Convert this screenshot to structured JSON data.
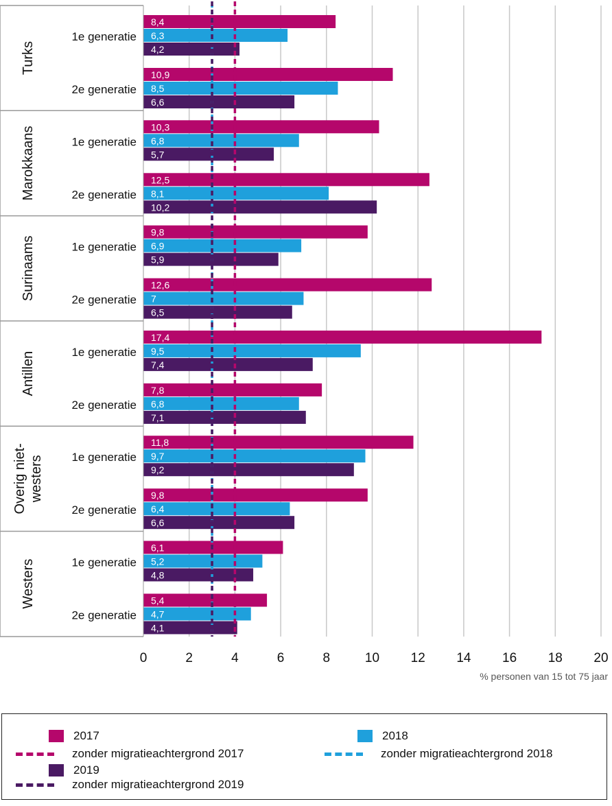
{
  "chart_data": {
    "type": "bar",
    "orientation": "horizontal",
    "xlabel": "% personen van 15 tot 75 jaar",
    "xlim": [
      0,
      20
    ],
    "xticks": [
      "0",
      "2",
      "4",
      "6",
      "8",
      "10",
      "12",
      "14",
      "16",
      "18",
      "20"
    ],
    "grid": true,
    "legend_position": "bottom",
    "groups": [
      {
        "name": "Turks",
        "subgroups": [
          {
            "label": "1e generatie",
            "values": [
              8.4,
              6.3,
              4.2
            ],
            "labels": [
              "8,4",
              "6,3",
              "4,2"
            ]
          },
          {
            "label": "2e generatie",
            "values": [
              10.9,
              8.5,
              6.6
            ],
            "labels": [
              "10,9",
              "8,5",
              "6,6"
            ]
          }
        ]
      },
      {
        "name": "Marokkaans",
        "subgroups": [
          {
            "label": "1e generatie",
            "values": [
              10.3,
              6.8,
              5.7
            ],
            "labels": [
              "10,3",
              "6,8",
              "5,7"
            ]
          },
          {
            "label": "2e generatie",
            "values": [
              12.5,
              8.1,
              10.2
            ],
            "labels": [
              "12,5",
              "8,1",
              "10,2"
            ]
          }
        ]
      },
      {
        "name": "Surinaams",
        "subgroups": [
          {
            "label": "1e generatie",
            "values": [
              9.8,
              6.9,
              5.9
            ],
            "labels": [
              "9,8",
              "6,9",
              "5,9"
            ]
          },
          {
            "label": "2e generatie",
            "values": [
              12.6,
              7,
              6.5
            ],
            "labels": [
              "12,6",
              "7",
              "6,5"
            ]
          }
        ]
      },
      {
        "name": "Antillen",
        "subgroups": [
          {
            "label": "1e generatie",
            "values": [
              17.4,
              9.5,
              7.4
            ],
            "labels": [
              "17,4",
              "9,5",
              "7,4"
            ]
          },
          {
            "label": "2e generatie",
            "values": [
              7.8,
              6.8,
              7.1
            ],
            "labels": [
              "7,8",
              "6,8",
              "7,1"
            ]
          }
        ]
      },
      {
        "name": "Overig niet-westers",
        "name_lines": [
          "Overig niet-",
          "westers"
        ],
        "subgroups": [
          {
            "label": "1e generatie",
            "values": [
              11.8,
              9.7,
              9.2
            ],
            "labels": [
              "11,8",
              "9,7",
              "9,2"
            ]
          },
          {
            "label": "2e generatie",
            "values": [
              9.8,
              6.4,
              6.6
            ],
            "labels": [
              "9,8",
              "6,4",
              "6,6"
            ]
          }
        ]
      },
      {
        "name": "Westers",
        "subgroups": [
          {
            "label": "1e generatie",
            "values": [
              6.1,
              5.2,
              4.8
            ],
            "labels": [
              "6,1",
              "5,2",
              "4,8"
            ]
          },
          {
            "label": "2e generatie",
            "values": [
              5.4,
              4.7,
              4.1
            ],
            "labels": [
              "5,4",
              "4,7",
              "4,1"
            ]
          }
        ]
      }
    ],
    "series": [
      {
        "name": "2017",
        "color": "#b5076b"
      },
      {
        "name": "2018",
        "color": "#1fa0dc"
      },
      {
        "name": "2019",
        "color": "#4a1a63"
      }
    ],
    "reference_lines": [
      {
        "name": "zonder migratieachtergrond 2017",
        "value": 4.0,
        "color": "#b5076b"
      },
      {
        "name": "zonder migratieachtergrond 2018",
        "value": 3.0,
        "color": "#1fa0dc"
      },
      {
        "name": "zonder migratieachtergrond 2019",
        "value": 3.0,
        "color": "#4a1a63"
      }
    ]
  },
  "legend": {
    "items": [
      {
        "label": "2017",
        "kind": "bar",
        "color": "#b5076b"
      },
      {
        "label": "2018",
        "kind": "bar",
        "color": "#1fa0dc"
      },
      {
        "label": "zonder migratieachtergrond 2017",
        "kind": "dash",
        "color": "#b5076b"
      },
      {
        "label": "zonder migratieachtergrond 2018",
        "kind": "dash",
        "color": "#1fa0dc"
      },
      {
        "label": "2019",
        "kind": "bar",
        "color": "#4a1a63"
      },
      {
        "label": "zonder migratieachtergrond 2019",
        "kind": "dash",
        "color": "#4a1a63"
      }
    ]
  }
}
